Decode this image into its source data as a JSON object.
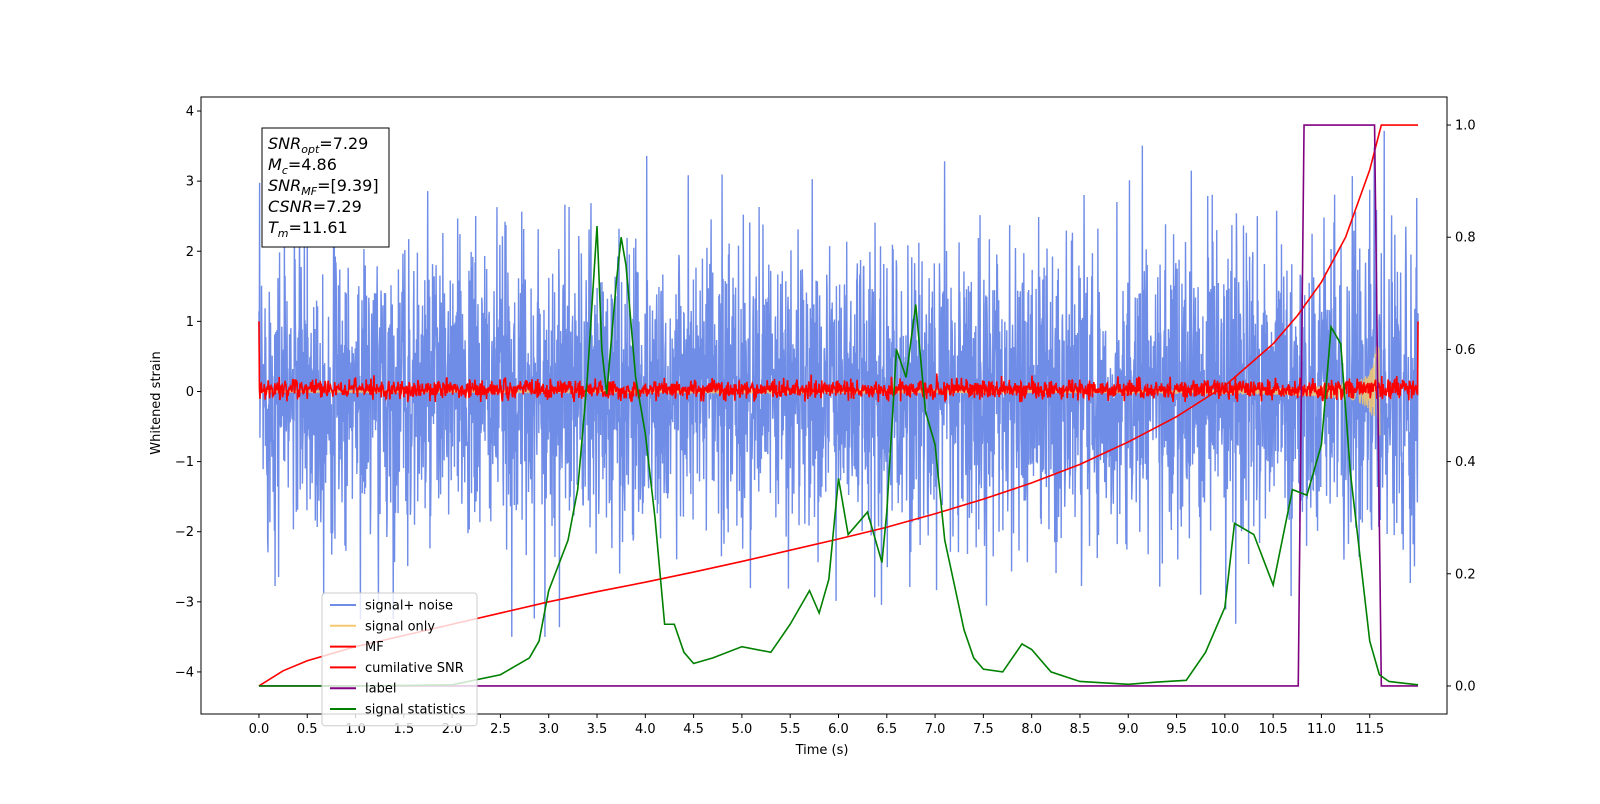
{
  "chart_data": {
    "type": "line",
    "xlabel": "Time (s)",
    "ylabel": "Whitened strain",
    "xlim": [
      -0.6,
      12.3
    ],
    "ylim": [
      -4.6,
      4.2
    ],
    "y2lim": [
      -0.05,
      1.05
    ],
    "x_ticks": [
      "0.0",
      "0.5",
      "1.0",
      "1.5",
      "2.0",
      "2.5",
      "3.0",
      "3.5",
      "4.0",
      "4.5",
      "5.0",
      "5.5",
      "6.0",
      "6.5",
      "7.0",
      "7.5",
      "8.0",
      "8.5",
      "9.0",
      "9.5",
      "10.0",
      "10.5",
      "11.0",
      "11.5"
    ],
    "y_ticks": [
      "−4",
      "−3",
      "−2",
      "−1",
      "0",
      "1",
      "2",
      "3",
      "4"
    ],
    "y2_ticks": [
      "0.0",
      "0.2",
      "0.4",
      "0.6",
      "0.8",
      "1.0"
    ],
    "legend_position": "bottom-left",
    "annotation": {
      "lines": [
        {
          "sym": "SNR",
          "sub": "opt",
          "value": "=7.29"
        },
        {
          "sym": "M",
          "sub": "c",
          "value": "=4.86"
        },
        {
          "sym": "SNR",
          "sub": "MF",
          "value": "=[9.39]"
        },
        {
          "sym": "CSNR",
          "sub": "",
          "value": "=7.29"
        },
        {
          "sym": "T",
          "sub": "m",
          "value": "=11.61"
        }
      ]
    },
    "series": [
      {
        "name": "signal+ noise",
        "color": "#6f8ce6",
        "axis": "left",
        "kind": "noise",
        "x_range": [
          0,
          12.0
        ],
        "approx_envelope": [
          -3.5,
          3.8
        ]
      },
      {
        "name": "signal only",
        "color": "#f5c870",
        "axis": "left",
        "kind": "chirp",
        "x_range": [
          0,
          11.61
        ],
        "approx_peak_amplitude": 0.8
      },
      {
        "name": "MF",
        "color": "#ff0000",
        "axis": "left",
        "kind": "band",
        "x_range": [
          0,
          12.0
        ],
        "approx_envelope": [
          -0.15,
          0.3
        ]
      },
      {
        "name": "cumilative SNR",
        "color": "#ff0000",
        "axis": "right",
        "x": [
          0,
          0.25,
          0.5,
          1.0,
          1.5,
          2.0,
          2.5,
          3.0,
          3.5,
          4.0,
          4.5,
          5.0,
          5.5,
          6.0,
          6.5,
          7.0,
          7.5,
          8.0,
          8.5,
          9.0,
          9.5,
          10.0,
          10.5,
          10.75,
          11.0,
          11.25,
          11.5,
          11.62,
          12.0
        ],
        "values": [
          0.0,
          0.027,
          0.045,
          0.07,
          0.09,
          0.11,
          0.13,
          0.15,
          0.168,
          0.185,
          0.203,
          0.222,
          0.242,
          0.262,
          0.283,
          0.307,
          0.333,
          0.362,
          0.395,
          0.435,
          0.48,
          0.535,
          0.61,
          0.66,
          0.72,
          0.8,
          0.92,
          1.0,
          1.0
        ]
      },
      {
        "name": "label",
        "color": "#800080",
        "axis": "right",
        "x": [
          0,
          10.76,
          10.82,
          11.55,
          11.62,
          12.0
        ],
        "values": [
          0,
          0,
          1,
          1,
          0,
          0
        ]
      },
      {
        "name": "signal statistics",
        "color": "#008000",
        "axis": "right",
        "x": [
          0,
          1.0,
          2.0,
          2.5,
          2.8,
          2.9,
          3.0,
          3.2,
          3.3,
          3.4,
          3.5,
          3.55,
          3.6,
          3.7,
          3.75,
          3.8,
          3.9,
          4.0,
          4.1,
          4.2,
          4.3,
          4.4,
          4.5,
          4.7,
          5.0,
          5.3,
          5.5,
          5.7,
          5.8,
          5.9,
          6.0,
          6.1,
          6.3,
          6.45,
          6.5,
          6.6,
          6.7,
          6.8,
          6.9,
          7.0,
          7.1,
          7.2,
          7.3,
          7.4,
          7.5,
          7.7,
          7.9,
          8.0,
          8.2,
          8.5,
          9.0,
          9.3,
          9.6,
          9.8,
          10.0,
          10.1,
          10.3,
          10.5,
          10.7,
          10.85,
          11.0,
          11.1,
          11.2,
          11.3,
          11.5,
          11.6,
          11.7,
          12.0
        ],
        "values": [
          0.0,
          0.0,
          0.002,
          0.02,
          0.05,
          0.08,
          0.17,
          0.26,
          0.35,
          0.55,
          0.82,
          0.6,
          0.52,
          0.72,
          0.8,
          0.75,
          0.55,
          0.45,
          0.3,
          0.11,
          0.11,
          0.06,
          0.04,
          0.05,
          0.07,
          0.06,
          0.11,
          0.17,
          0.13,
          0.19,
          0.37,
          0.27,
          0.31,
          0.22,
          0.31,
          0.6,
          0.55,
          0.68,
          0.49,
          0.43,
          0.26,
          0.18,
          0.1,
          0.05,
          0.03,
          0.025,
          0.075,
          0.065,
          0.025,
          0.008,
          0.003,
          0.007,
          0.01,
          0.06,
          0.14,
          0.29,
          0.27,
          0.18,
          0.35,
          0.34,
          0.43,
          0.64,
          0.61,
          0.38,
          0.08,
          0.02,
          0.008,
          0.002
        ]
      }
    ]
  }
}
